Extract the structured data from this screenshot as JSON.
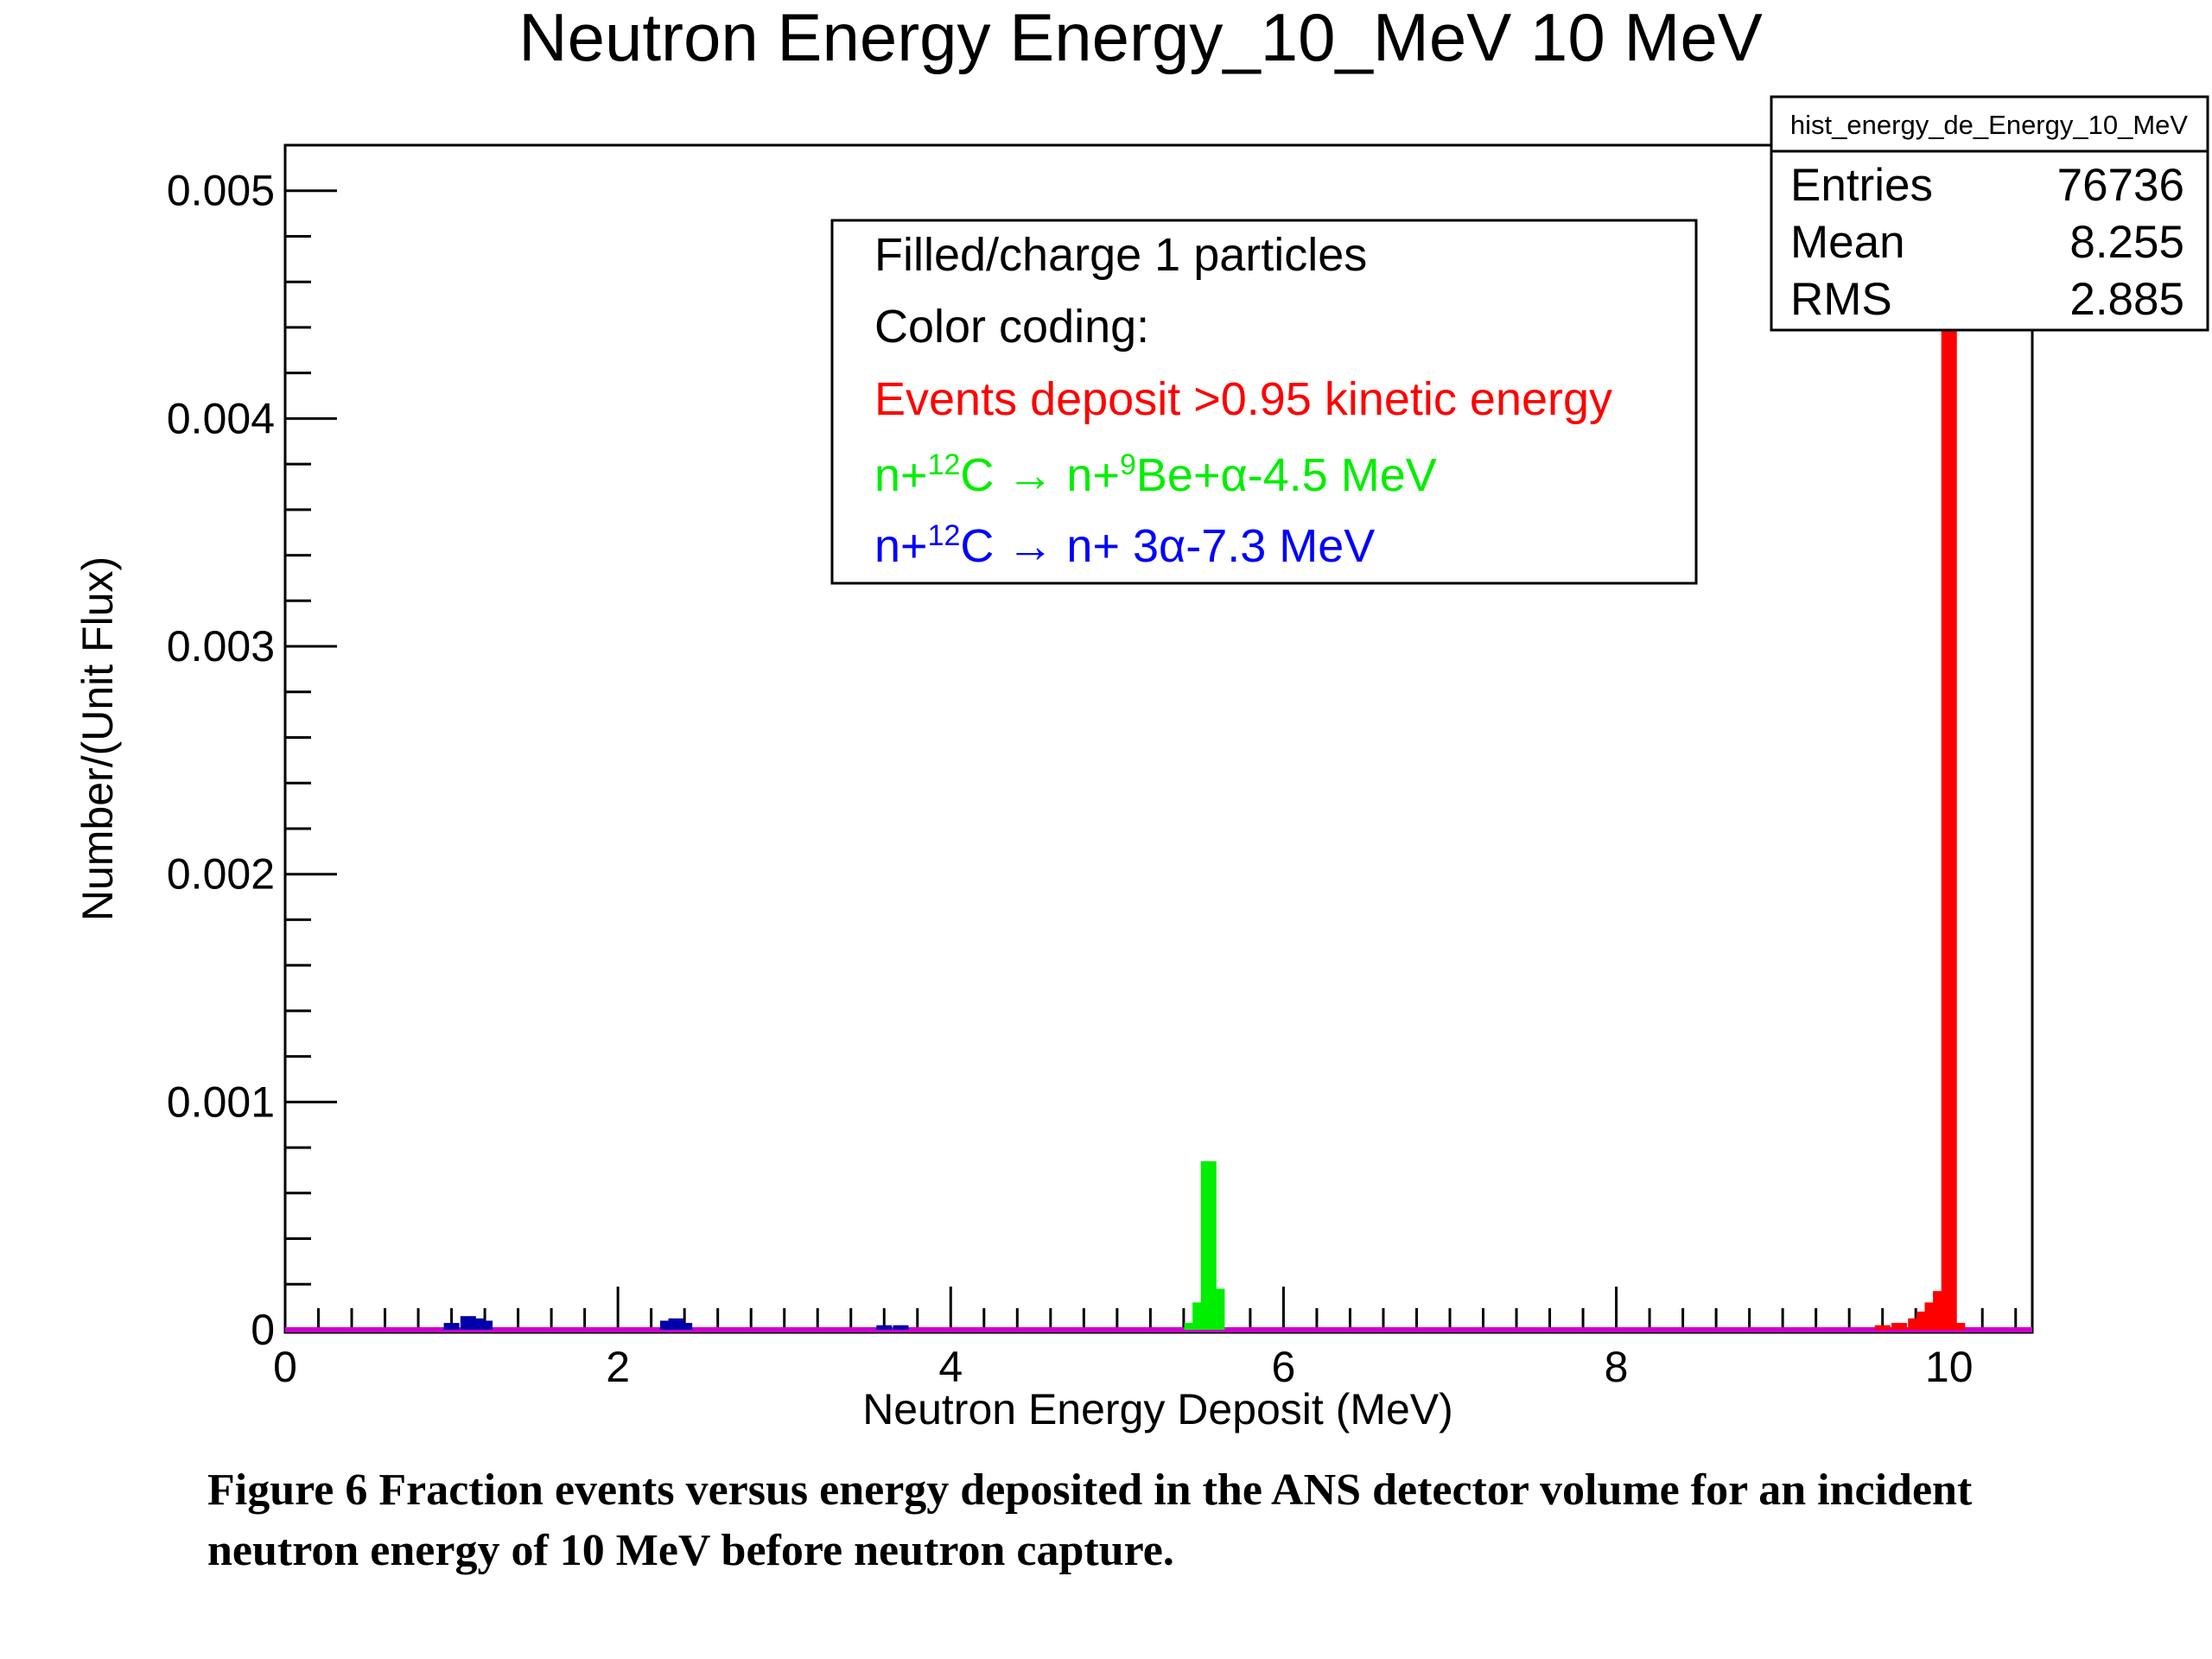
{
  "chart_data": {
    "type": "bar",
    "title": "Neutron Energy Energy_10_MeV 10 MeV",
    "xlabel": "Neutron Energy Deposit (MeV)",
    "ylabel": "Number/(Unit Flux)",
    "xlim": [
      0,
      10.5
    ],
    "ylim": [
      0,
      0.0052
    ],
    "x_ticks": [
      0,
      2,
      4,
      6,
      8,
      10
    ],
    "y_ticks": [
      0,
      0.001,
      0.002,
      0.003,
      0.004,
      0.005
    ],
    "x_tick_labels": [
      "0",
      "2",
      "4",
      "6",
      "8",
      "10"
    ],
    "y_tick_labels": [
      "0",
      "0.001",
      "0.002",
      "0.003",
      "0.004",
      "0.005"
    ],
    "grid": false,
    "stats": {
      "name": "hist_energy_de_Energy_10_MeV",
      "rows": [
        {
          "label": "Entries",
          "value": "76736"
        },
        {
          "label": "Mean",
          "value": "8.255"
        },
        {
          "label": "RMS",
          "value": "2.885"
        }
      ]
    },
    "legend": {
      "position": "top-center",
      "lines": [
        {
          "text": "Filled/charge 1 particles",
          "color": "#000000"
        },
        {
          "text": "Color coding:",
          "color": "#000000"
        },
        {
          "text": "Events deposit >0.95 kinetic energy",
          "color": "#ff0000"
        },
        {
          "parts": [
            {
              "t": "n+"
            },
            {
              "t": "12",
              "sup": true
            },
            {
              "t": "C → n+"
            },
            {
              "t": "9",
              "sup": true
            },
            {
              "t": "Be+α-4.5 MeV"
            }
          ],
          "color": "#00ee00"
        },
        {
          "parts": [
            {
              "t": "n+"
            },
            {
              "t": "12",
              "sup": true
            },
            {
              "t": "C → n+ 3α-7.3 MeV"
            }
          ],
          "color": "#0000ff"
        }
      ]
    },
    "series": [
      {
        "color": "#ff0000",
        "x": [
          9.6,
          9.7,
          9.8,
          9.85,
          9.9,
          9.95,
          10.0,
          10.05
        ],
        "values": [
          2e-05,
          3e-05,
          5e-05,
          8e-05,
          0.00012,
          0.00017,
          0.0049,
          3e-05
        ]
      },
      {
        "color": "#00ee00",
        "x": [
          5.45,
          5.5,
          5.55,
          5.6
        ],
        "values": [
          3e-05,
          0.00012,
          0.00074,
          0.00018
        ]
      },
      {
        "color": "#0000aa",
        "x": [
          1.0,
          1.1,
          1.15,
          1.2,
          2.3,
          2.35,
          2.4,
          3.6,
          3.7
        ],
        "values": [
          3e-05,
          6e-05,
          5e-05,
          4e-05,
          4e-05,
          5e-05,
          3e-05,
          2e-05,
          2e-05
        ]
      }
    ]
  },
  "caption": "Figure 6 Fraction events versus energy deposited in the ANS detector volume for an incident neutron energy of 10 MeV before neutron capture."
}
